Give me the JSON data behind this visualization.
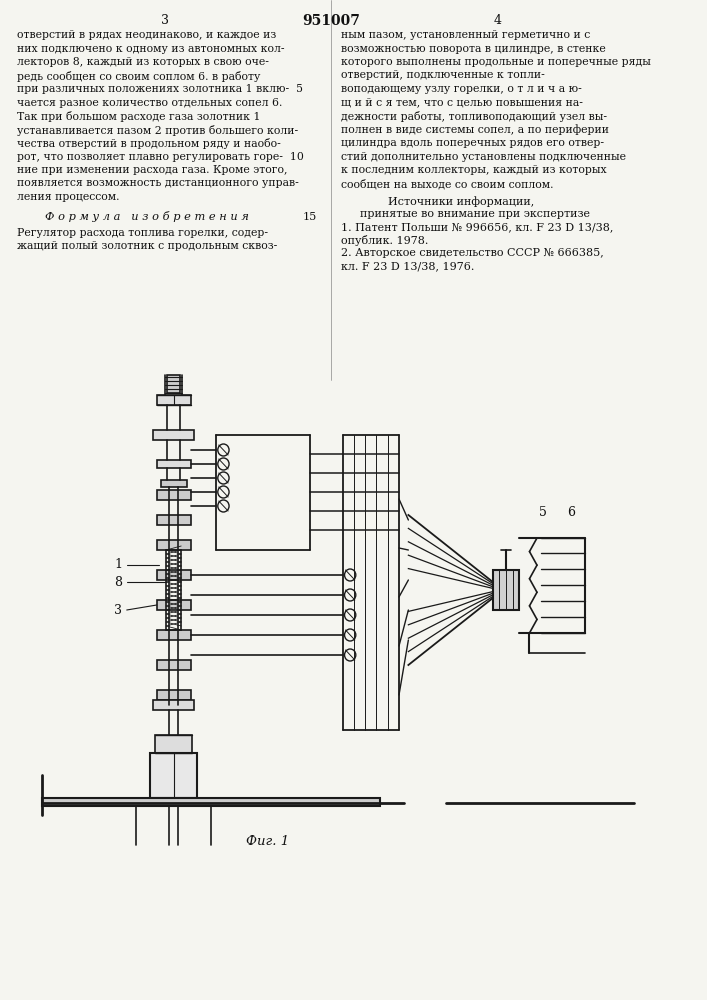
{
  "page_number_left": "3",
  "page_number_center": "951007",
  "page_number_right": "4",
  "text_left_col": [
    "отверстий в рядах неодинаково, и каждое из",
    "них подключено к одному из автономных кол-",
    "лекторов 8, каждый из которых в свою оче-",
    "редь сообщен со своим соплом 6. в работу",
    "при различных положениях золотника 1 вклю-  5",
    "чается разное количество отдельных сопел 6.",
    "Так при большом расходе газа золотник 1",
    "устанавливается пазом 2 против большего коли-",
    "чества отверстий в продольном ряду и наобо-",
    "рот, что позволяет плавно регулировать горе-  10",
    "ние при изменении расхода газа. Кроме этого,",
    "появляется возможность дистанционного управ-",
    "ления процессом."
  ],
  "formula_header": "Ф о р м у л а   и з о б р е т е н и я",
  "formula_line_number": "15",
  "formula_text": [
    "Регулятор расхода топлива горелки, содер-",
    "жащий полый золотник с продольным сквоз-"
  ],
  "text_right_col": [
    "ным пазом, установленный герметично и с",
    "возможностью поворота в цилиндре, в стенке",
    "которого выполнены продольные и поперечные ряды отверстий, подключенные к топли-",
    "воподающему узлу горелки, о т л и ч а ю-",
    "щ и й с я тем, что с целью повышения на-",
    "дежности работы, топливоподающий узел вы-",
    "полнен в виде системы сопел, а по периферии",
    "цилиндра вдоль поперечных рядов его отвер-",
    "стий дополнительно установлены подключенные",
    "к последним коллекторы, каждый из которых",
    "сообщен на выходе со своим соплом."
  ],
  "sources_header": "Источники информации,",
  "sources_sub": "принятые во внимание при экспертизе",
  "source1": "1. Патент Польши № 996656, кл. F 23 D 13/38,",
  "source1b": "опублик. 1978.",
  "source2": "2. Авторское свидетельство СССР № 666385,",
  "source2b": "кл. F 23 D 13/38, 1976.",
  "fig_caption": "Фиг. 1",
  "bg_color": "#f5f5f0",
  "line_color": "#1a1a1a",
  "text_color": "#111111"
}
